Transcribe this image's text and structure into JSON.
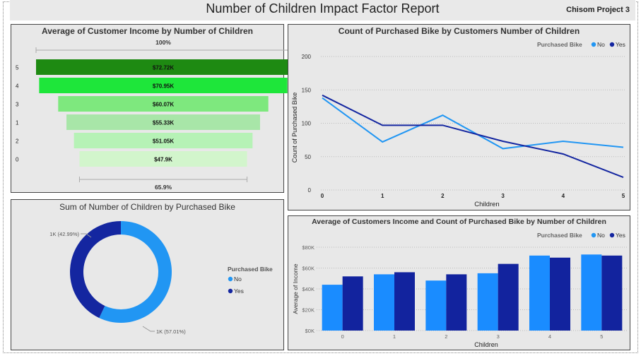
{
  "header": {
    "title": "Number of Children Impact Factor Report",
    "project": "Chisom Project 3"
  },
  "colors": {
    "no": "#2196f3",
    "yes": "#1426a0",
    "no_bar": "#1a8cff",
    "yes_bar": "#12239e"
  },
  "funnel": {
    "title": "Average of Customer Income by Number of Children",
    "top_pct": "100%",
    "bottom_pct": "65.9%"
  },
  "line": {
    "title": "Count of Purchased Bike by Customers Number of Children",
    "ylabel": "Count of Purchased Bike",
    "xlabel": "Children",
    "legend_title": "Purchased Bike",
    "yticks": [
      "200",
      "150",
      "100",
      "50",
      "0"
    ]
  },
  "donut": {
    "title": "Sum of Number of Children by Purchased Bike",
    "legend_title": "Purchased Bike"
  },
  "bar": {
    "title": "Average of Customers Income and Count of Purchased Bike by Number of Children",
    "ylabel": "Average of Income",
    "xlabel": "Children",
    "legend_title": "Purchased Bike",
    "yticks": [
      "$80K",
      "$60K",
      "$40K",
      "$20K",
      "$0K"
    ]
  },
  "chart_data": [
    {
      "type": "bar",
      "subtype": "funnel",
      "title": "Average of Customer Income by Number of Children",
      "categories": [
        "5",
        "4",
        "3",
        "1",
        "2",
        "0"
      ],
      "values": [
        72.72,
        70.95,
        60.07,
        55.33,
        51.05,
        47.9
      ],
      "labels": [
        "$72.72K",
        "$70.95K",
        "$60.07K",
        "$55.33K",
        "$51.05K",
        "$47.9K"
      ],
      "colors": [
        "#1e8a12",
        "#1ee63a",
        "#7ee87e",
        "#a8e6a8",
        "#b6f2b6",
        "#d2f5cc"
      ]
    },
    {
      "type": "line",
      "title": "Count of Purchased Bike by Customers Number of Children",
      "xlabel": "Children",
      "ylabel": "Count of Purchased Bike",
      "x": [
        0,
        1,
        2,
        3,
        4,
        5
      ],
      "ylim": [
        0,
        200
      ],
      "legend": "top-right",
      "series": [
        {
          "name": "No",
          "values": [
            138,
            72,
            112,
            62,
            73,
            64
          ]
        },
        {
          "name": "Yes",
          "values": [
            142,
            97,
            97,
            73,
            54,
            19
          ]
        }
      ]
    },
    {
      "type": "pie",
      "subtype": "donut",
      "title": "Sum of Number of Children by Purchased Bike",
      "legend": "right",
      "slices": [
        {
          "name": "No",
          "value": 57.01,
          "label": "1K (57.01%)"
        },
        {
          "name": "Yes",
          "value": 42.99,
          "label": "1K (42.99%)"
        }
      ]
    },
    {
      "type": "bar",
      "title": "Average of Customers Income and Count of Purchased Bike by Number of Children",
      "xlabel": "Children",
      "ylabel": "Average of Income",
      "categories": [
        "0",
        "1",
        "2",
        "3",
        "4",
        "5"
      ],
      "ylim": [
        0,
        80
      ],
      "legend": "top-right",
      "series": [
        {
          "name": "No",
          "values": [
            44,
            54,
            48,
            55,
            72,
            73
          ]
        },
        {
          "name": "Yes",
          "values": [
            52,
            56,
            54,
            64,
            70,
            72
          ]
        }
      ]
    }
  ]
}
